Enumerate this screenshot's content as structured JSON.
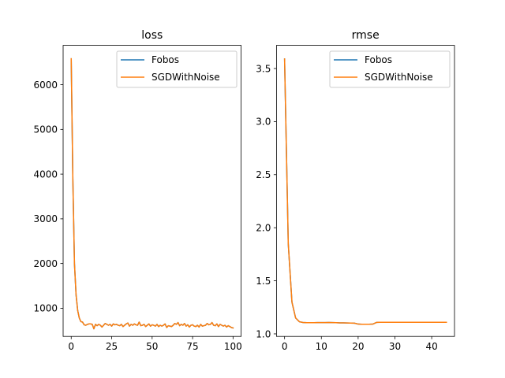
{
  "chart_data": [
    {
      "type": "line",
      "title": "loss",
      "xlabel": "",
      "ylabel": "",
      "xlim": [
        -5,
        105
      ],
      "ylim": [
        370,
        6880
      ],
      "xticks": [
        0,
        25,
        50,
        75,
        100
      ],
      "yticks": [
        1000,
        2000,
        3000,
        4000,
        5000,
        6000
      ],
      "grid": false,
      "legend_position": "top-right",
      "series": [
        {
          "name": "Fobos",
          "color": "#1f77b4",
          "x": [
            0,
            1,
            2,
            3,
            4,
            5,
            6,
            7,
            8,
            9,
            10,
            11,
            12,
            13,
            14,
            15,
            16,
            17,
            18,
            19,
            20,
            21,
            22,
            23,
            24,
            25,
            26,
            27,
            28,
            29,
            30,
            31,
            32,
            33,
            34,
            35,
            36,
            37,
            38,
            39,
            40,
            41,
            42,
            43,
            44,
            45,
            46,
            47,
            48,
            49,
            50,
            51,
            52,
            53,
            54,
            55,
            56,
            57,
            58,
            59,
            60,
            61,
            62,
            63,
            64,
            65,
            66,
            67,
            68,
            69,
            70,
            71,
            72,
            73,
            74,
            75,
            76,
            77,
            78,
            79,
            80,
            81,
            82,
            83,
            84,
            85,
            86,
            87,
            88,
            89,
            90,
            91,
            92,
            93,
            94,
            95,
            96,
            97,
            98,
            99,
            100
          ],
          "y": [
            6580,
            3900,
            2000,
            1300,
            950,
            780,
            700,
            690,
            630,
            620,
            640,
            650,
            650,
            640,
            540,
            640,
            610,
            640,
            620,
            580,
            620,
            660,
            640,
            620,
            640,
            600,
            650,
            630,
            640,
            620,
            610,
            640,
            590,
            620,
            650,
            670,
            600,
            640,
            620,
            650,
            630,
            620,
            690,
            610,
            620,
            640,
            590,
            620,
            650,
            600,
            630,
            620,
            600,
            640,
            590,
            620,
            600,
            620,
            650,
            570,
            610,
            600,
            590,
            620,
            660,
            640,
            680,
            610,
            640,
            620,
            660,
            600,
            630,
            580,
            620,
            630,
            600,
            590,
            620,
            580,
            640,
            600,
            610,
            620,
            660,
            630,
            640,
            680,
            620,
            610,
            650,
            590,
            640,
            620,
            600,
            620,
            580,
            610,
            590,
            570,
            560
          ]
        },
        {
          "name": "SGDWithNoise",
          "color": "#ff7f0e",
          "x": [
            0,
            1,
            2,
            3,
            4,
            5,
            6,
            7,
            8,
            9,
            10,
            11,
            12,
            13,
            14,
            15,
            16,
            17,
            18,
            19,
            20,
            21,
            22,
            23,
            24,
            25,
            26,
            27,
            28,
            29,
            30,
            31,
            32,
            33,
            34,
            35,
            36,
            37,
            38,
            39,
            40,
            41,
            42,
            43,
            44,
            45,
            46,
            47,
            48,
            49,
            50,
            51,
            52,
            53,
            54,
            55,
            56,
            57,
            58,
            59,
            60,
            61,
            62,
            63,
            64,
            65,
            66,
            67,
            68,
            69,
            70,
            71,
            72,
            73,
            74,
            75,
            76,
            77,
            78,
            79,
            80,
            81,
            82,
            83,
            84,
            85,
            86,
            87,
            88,
            89,
            90,
            91,
            92,
            93,
            94,
            95,
            96,
            97,
            98,
            99,
            100
          ],
          "y": [
            6580,
            3900,
            2000,
            1300,
            950,
            780,
            700,
            690,
            630,
            620,
            640,
            650,
            650,
            640,
            540,
            640,
            610,
            640,
            620,
            580,
            620,
            660,
            640,
            620,
            640,
            600,
            650,
            630,
            640,
            620,
            610,
            640,
            590,
            620,
            650,
            670,
            600,
            640,
            620,
            650,
            630,
            620,
            690,
            610,
            620,
            640,
            590,
            620,
            650,
            600,
            630,
            620,
            600,
            640,
            590,
            620,
            600,
            620,
            650,
            570,
            610,
            600,
            590,
            620,
            660,
            640,
            680,
            610,
            640,
            620,
            660,
            600,
            630,
            580,
            620,
            630,
            600,
            590,
            620,
            580,
            640,
            600,
            610,
            620,
            660,
            630,
            640,
            680,
            620,
            610,
            650,
            590,
            640,
            620,
            600,
            620,
            580,
            610,
            590,
            570,
            560
          ]
        }
      ]
    },
    {
      "type": "line",
      "title": "rmse",
      "xlabel": "",
      "ylabel": "",
      "xlim": [
        -2.2,
        46.2
      ],
      "ylim": [
        0.976,
        3.718
      ],
      "xticks": [
        0,
        10,
        20,
        30,
        40
      ],
      "yticks": [
        1.0,
        1.5,
        2.0,
        2.5,
        3.0,
        3.5
      ],
      "grid": false,
      "legend_position": "top-right",
      "series": [
        {
          "name": "Fobos",
          "color": "#1f77b4",
          "x": [
            0,
            1,
            2,
            3,
            4,
            5,
            6,
            7,
            8,
            9,
            10,
            11,
            12,
            13,
            14,
            15,
            16,
            17,
            18,
            19,
            20,
            21,
            22,
            23,
            24,
            25,
            26,
            27,
            28,
            29,
            30,
            31,
            32,
            33,
            34,
            35,
            36,
            37,
            38,
            39,
            40,
            41,
            42,
            43,
            44
          ],
          "y": [
            3.59,
            1.85,
            1.3,
            1.15,
            1.115,
            1.107,
            1.105,
            1.105,
            1.105,
            1.106,
            1.106,
            1.106,
            1.107,
            1.106,
            1.105,
            1.104,
            1.104,
            1.103,
            1.102,
            1.101,
            1.092,
            1.091,
            1.091,
            1.091,
            1.092,
            1.108,
            1.109,
            1.109,
            1.109,
            1.109,
            1.109,
            1.109,
            1.109,
            1.109,
            1.109,
            1.109,
            1.109,
            1.109,
            1.109,
            1.109,
            1.109,
            1.109,
            1.109,
            1.109,
            1.109
          ]
        },
        {
          "name": "SGDWithNoise",
          "color": "#ff7f0e",
          "x": [
            0,
            1,
            2,
            3,
            4,
            5,
            6,
            7,
            8,
            9,
            10,
            11,
            12,
            13,
            14,
            15,
            16,
            17,
            18,
            19,
            20,
            21,
            22,
            23,
            24,
            25,
            26,
            27,
            28,
            29,
            30,
            31,
            32,
            33,
            34,
            35,
            36,
            37,
            38,
            39,
            40,
            41,
            42,
            43,
            44
          ],
          "y": [
            3.59,
            1.85,
            1.3,
            1.15,
            1.115,
            1.107,
            1.105,
            1.105,
            1.105,
            1.106,
            1.106,
            1.106,
            1.107,
            1.106,
            1.105,
            1.104,
            1.104,
            1.103,
            1.102,
            1.101,
            1.092,
            1.091,
            1.091,
            1.091,
            1.092,
            1.108,
            1.109,
            1.109,
            1.109,
            1.109,
            1.109,
            1.109,
            1.109,
            1.109,
            1.109,
            1.109,
            1.109,
            1.109,
            1.109,
            1.109,
            1.109,
            1.109,
            1.109,
            1.109,
            1.109
          ]
        }
      ]
    }
  ]
}
